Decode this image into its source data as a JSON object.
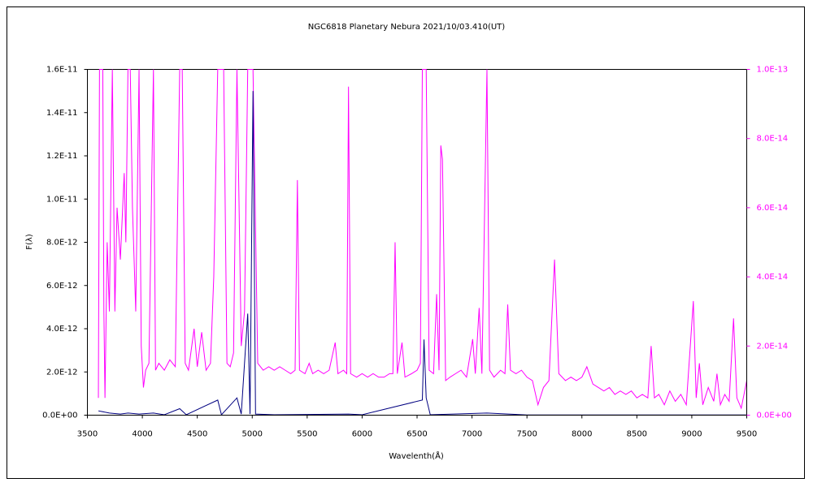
{
  "chart_data": {
    "type": "line",
    "title": "NGC6818  Planetary Nebura   2021/10/03.410(UT)",
    "x_label": "Wavelenth(Å)",
    "y_label": "F(λ)",
    "xlim": [
      3500,
      9500
    ],
    "xticks": [
      3500,
      4000,
      4500,
      5000,
      5500,
      6000,
      6500,
      7000,
      7500,
      8000,
      8500,
      9000,
      9500
    ],
    "ylim": [
      0,
      1.6e-11
    ],
    "yticks": [
      {
        "value": 0,
        "label": "0.0E+00"
      },
      {
        "value": 2e-12,
        "label": "2.0E-12"
      },
      {
        "value": 4e-12,
        "label": "4.0E-12"
      },
      {
        "value": 6e-12,
        "label": "6.0E-12"
      },
      {
        "value": 8e-12,
        "label": "8.0E-12"
      },
      {
        "value": 1e-11,
        "label": "1.0E-11"
      },
      {
        "value": 1.2e-11,
        "label": "1.2E-11"
      },
      {
        "value": 1.4e-11,
        "label": "1.4E-11"
      },
      {
        "value": 1.6e-11,
        "label": "1.6E-11"
      }
    ],
    "y2lim": [
      0,
      1e-13
    ],
    "y2ticks": [
      {
        "value": 0,
        "label": "0.0E+00"
      },
      {
        "value": 2e-14,
        "label": "2.0E-14"
      },
      {
        "value": 4e-14,
        "label": "4.0E-14"
      },
      {
        "value": 6e-14,
        "label": "6.0E-14"
      },
      {
        "value": 8e-14,
        "label": "8.0E-14"
      },
      {
        "value": 1e-13,
        "label": "1.0E-13"
      }
    ],
    "y2color": "#ff00ff",
    "series": [
      {
        "color": "#ff00ff",
        "axis": "y2",
        "x": [
          3600,
          3610,
          3640,
          3650,
          3660,
          3680,
          3700,
          3727,
          3750,
          3770,
          3800,
          3835,
          3850,
          3869,
          3890,
          3910,
          3940,
          3970,
          3990,
          4010,
          4030,
          4060,
          4101,
          4120,
          4150,
          4200,
          4250,
          4300,
          4340,
          4363,
          4390,
          4420,
          4471,
          4500,
          4540,
          4580,
          4620,
          4650,
          4686,
          4711,
          4740,
          4770,
          4800,
          4830,
          4861,
          4900,
          4930,
          4959,
          5007,
          5050,
          5100,
          5150,
          5200,
          5250,
          5300,
          5350,
          5390,
          5411,
          5430,
          5480,
          5518,
          5550,
          5600,
          5650,
          5700,
          5755,
          5780,
          5830,
          5860,
          5876,
          5895,
          5950,
          6000,
          6050,
          6100,
          6150,
          6200,
          6250,
          6280,
          6300,
          6320,
          6363,
          6390,
          6450,
          6500,
          6530,
          6548,
          6563,
          6583,
          6610,
          6650,
          6678,
          6700,
          6716,
          6731,
          6760,
          6800,
          6850,
          6900,
          6950,
          7006,
          7030,
          7065,
          7090,
          7136,
          7160,
          7200,
          7260,
          7300,
          7325,
          7350,
          7400,
          7450,
          7500,
          7550,
          7600,
          7650,
          7700,
          7751,
          7790,
          7850,
          7900,
          7950,
          8000,
          8045,
          8100,
          8150,
          8200,
          8250,
          8300,
          8350,
          8400,
          8450,
          8500,
          8550,
          8600,
          8630,
          8660,
          8700,
          8750,
          8800,
          8850,
          8900,
          8950,
          9014,
          9040,
          9069,
          9100,
          9150,
          9200,
          9229,
          9260,
          9300,
          9340,
          9380,
          9410,
          9450,
          9500
        ],
        "values": [
          5e-15,
          1e-13,
          1e-13,
          3e-14,
          5e-15,
          5e-14,
          3e-14,
          1e-13,
          3e-14,
          6e-14,
          4.5e-14,
          7e-14,
          5e-14,
          1e-13,
          1e-13,
          6e-14,
          3e-14,
          1e-13,
          2e-14,
          8e-15,
          1.3e-14,
          1.5e-14,
          1e-13,
          1.3e-14,
          1.5e-14,
          1.3e-14,
          1.6e-14,
          1.4e-14,
          1e-13,
          1e-13,
          1.5e-14,
          1.3e-14,
          2.5e-14,
          1.4e-14,
          2.4e-14,
          1.3e-14,
          1.5e-14,
          4e-14,
          1e-13,
          1e-13,
          1e-13,
          1.5e-14,
          1.4e-14,
          1.8e-14,
          1e-13,
          2e-14,
          3e-14,
          1e-13,
          1e-13,
          1.5e-14,
          1.3e-14,
          1.4e-14,
          1.3e-14,
          1.4e-14,
          1.3e-14,
          1.2e-14,
          1.3e-14,
          6.8e-14,
          1.3e-14,
          1.2e-14,
          1.5e-14,
          1.2e-14,
          1.3e-14,
          1.2e-14,
          1.3e-14,
          2.1e-14,
          1.2e-14,
          1.3e-14,
          1.2e-14,
          9.5e-14,
          1.2e-14,
          1.1e-14,
          1.2e-14,
          1.1e-14,
          1.2e-14,
          1.1e-14,
          1.1e-14,
          1.2e-14,
          1.2e-14,
          5e-14,
          1.2e-14,
          2.1e-14,
          1.1e-14,
          1.2e-14,
          1.3e-14,
          1.5e-14,
          1e-13,
          1e-13,
          1e-13,
          1.3e-14,
          1.2e-14,
          3.5e-14,
          1.3e-14,
          7.8e-14,
          7.4e-14,
          1e-14,
          1.1e-14,
          1.2e-14,
          1.3e-14,
          1.1e-14,
          2.2e-14,
          1.2e-14,
          3.1e-14,
          1.2e-14,
          1e-13,
          1.3e-14,
          1.1e-14,
          1.3e-14,
          1.2e-14,
          3.2e-14,
          1.3e-14,
          1.2e-14,
          1.3e-14,
          1.1e-14,
          1e-14,
          3e-15,
          8e-15,
          1e-14,
          4.5e-14,
          1.2e-14,
          1e-14,
          1.1e-14,
          1e-14,
          1.1e-14,
          1.4e-14,
          9e-15,
          8e-15,
          7e-15,
          8e-15,
          6e-15,
          7e-15,
          6e-15,
          7e-15,
          5e-15,
          6e-15,
          5e-15,
          2e-14,
          5e-15,
          6e-15,
          3e-15,
          7e-15,
          4e-15,
          6e-15,
          3e-15,
          3.3e-14,
          5e-15,
          1.5e-14,
          3e-15,
          8e-15,
          4e-15,
          1.2e-14,
          3e-15,
          6e-15,
          4e-15,
          2.8e-14,
          5e-15,
          2e-15,
          1e-14
        ]
      },
      {
        "color": "#000080",
        "x": [
          3600,
          3700,
          3800,
          3870,
          3970,
          4101,
          4200,
          4340,
          4400,
          4686,
          4720,
          4861,
          4900,
          4959,
          4980,
          5007,
          5030,
          5200,
          5876,
          6000,
          6548,
          6563,
          6583,
          6620,
          7136,
          7500,
          8000,
          9500
        ],
        "values": [
          2e-13,
          1e-13,
          5e-14,
          1e-13,
          5e-14,
          1e-13,
          2e-14,
          3e-13,
          2e-14,
          7e-13,
          2e-14,
          8e-13,
          5e-14,
          4.7e-12,
          5e-14,
          1.5e-11,
          5e-14,
          2e-14,
          5e-14,
          2e-14,
          7e-13,
          3.5e-12,
          8e-13,
          2e-14,
          1e-13,
          1e-14,
          1e-14,
          1e-14
        ]
      }
    ]
  }
}
